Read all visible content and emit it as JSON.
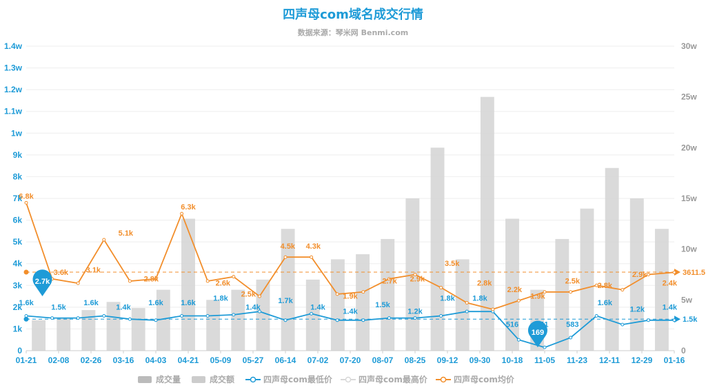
{
  "chart_data": {
    "type": "line",
    "title": "四声母com域名成交行情",
    "subtitle": "数据来源：琴米网 Benmi.com",
    "x_ticks": [
      "01-21",
      "02-08",
      "02-26",
      "03-16",
      "04-03",
      "04-21",
      "05-09",
      "05-27",
      "06-14",
      "07-02",
      "07-20",
      "08-07",
      "08-25",
      "09-12",
      "09-30",
      "10-18",
      "11-05",
      "11-23",
      "12-11",
      "12-29",
      "01-16"
    ],
    "y_left_ticks": [
      "0",
      "1k",
      "2k",
      "3k",
      "4k",
      "5k",
      "6k",
      "7k",
      "8k",
      "9k",
      "1w",
      "1.1w",
      "1.2w",
      "1.3w",
      "1.4w"
    ],
    "y_right_ticks": [
      "0",
      "5w",
      "10w",
      "15w",
      "20w",
      "25w",
      "30w"
    ],
    "ylim_left": [
      0,
      14000
    ],
    "ylim_right": [
      0,
      300000
    ],
    "grid": true,
    "legend_position": "bottom",
    "legend": [
      {
        "name": "成交量",
        "color": "#bbbbbb",
        "icon": "rect"
      },
      {
        "name": "成交额",
        "color": "#cccccc",
        "icon": "rect"
      },
      {
        "name": "四声母com最低价",
        "color": "#1e9bd7",
        "icon": "line-circle"
      },
      {
        "name": "四声母com最高价",
        "color": "#d8d8d8",
        "icon": "line-circle"
      },
      {
        "name": "四声母com均价",
        "color": "#f28e2b",
        "icon": "line-circle"
      }
    ],
    "series": [
      {
        "name": "四声母com最低价",
        "color": "#1e9bd7",
        "axis": "left",
        "values": [
          1600,
          1500,
          1500,
          1600,
          1450,
          1400,
          1600,
          1600,
          1650,
          1800,
          1400,
          1700,
          1400,
          1400,
          1500,
          1500,
          1600,
          1800,
          1800,
          500,
          150,
          600,
          1600,
          1200,
          1400,
          1400
        ]
      },
      {
        "name": "四声母com均价",
        "color": "#f28e2b",
        "axis": "left",
        "values": [
          6800,
          3300,
          3100,
          5100,
          3200,
          3300,
          6300,
          3200,
          3400,
          2500,
          4300,
          4300,
          2600,
          2700,
          3300,
          3500,
          2900,
          2200,
          1900,
          2300,
          2700,
          2700,
          3000,
          2800,
          3500,
          3600
        ]
      }
    ],
    "bars": {
      "name": "成交额",
      "color": "#d4d4d4",
      "axis": "right",
      "values": [
        30000,
        32000,
        40000,
        48000,
        42000,
        60000,
        130000,
        50000,
        60000,
        70000,
        120000,
        70000,
        90000,
        95000,
        110000,
        150000,
        200000,
        90000,
        250000,
        130000,
        60000,
        110000,
        140000,
        180000,
        150000,
        120000
      ]
    },
    "annotations_orange": [
      {
        "text": "6.8k",
        "x": 0,
        "y": 6800
      },
      {
        "text": "3.6k",
        "x": 1.5,
        "y": 3300
      },
      {
        "text": "3.1k",
        "x": 2.9,
        "y": 3400
      },
      {
        "text": "5.1k",
        "x": 4.3,
        "y": 5100
      },
      {
        "text": "2.8k",
        "x": 5.4,
        "y": 3000
      },
      {
        "text": "6.3k",
        "x": 7.0,
        "y": 6300
      },
      {
        "text": "2.6k",
        "x": 8.5,
        "y": 2800
      },
      {
        "text": "2.5k",
        "x": 9.6,
        "y": 2300
      },
      {
        "text": "4.5k",
        "x": 11.3,
        "y": 4500
      },
      {
        "text": "4.3k",
        "x": 12.4,
        "y": 4500
      },
      {
        "text": "1.9k",
        "x": 14.0,
        "y": 2200
      },
      {
        "text": "2.7k",
        "x": 15.7,
        "y": 2900
      },
      {
        "text": "2.9k",
        "x": 16.9,
        "y": 3000
      },
      {
        "text": "3.5k",
        "x": 18.4,
        "y": 3700
      },
      {
        "text": "2.8k",
        "x": 19.8,
        "y": 2800
      },
      {
        "text": "2.2k",
        "x": 21.1,
        "y": 2500
      },
      {
        "text": "1.9k",
        "x": 22.1,
        "y": 2200
      },
      {
        "text": "2.5k",
        "x": 23.6,
        "y": 2900
      },
      {
        "text": "2.8k",
        "x": 25.0,
        "y": 2700
      },
      {
        "text": "2.9k",
        "x": 26.5,
        "y": 3200
      },
      {
        "text": "2.4k",
        "x": 27.8,
        "y": 2800
      }
    ],
    "annotations_blue": [
      {
        "text": "1.6k",
        "x": 0,
        "y": 1900
      },
      {
        "text": "1.5k",
        "x": 1.4,
        "y": 1700
      },
      {
        "text": "1.6k",
        "x": 2.8,
        "y": 1900
      },
      {
        "text": "1.4k",
        "x": 4.2,
        "y": 1700
      },
      {
        "text": "1.6k",
        "x": 5.6,
        "y": 1900
      },
      {
        "text": "1.6k",
        "x": 7.0,
        "y": 1900
      },
      {
        "text": "1.8k",
        "x": 8.4,
        "y": 2100
      },
      {
        "text": "1.4k",
        "x": 9.8,
        "y": 1700
      },
      {
        "text": "1.7k",
        "x": 11.2,
        "y": 2000
      },
      {
        "text": "1.4k",
        "x": 12.6,
        "y": 1700
      },
      {
        "text": "1.4k",
        "x": 14.0,
        "y": 1500
      },
      {
        "text": "1.5k",
        "x": 15.4,
        "y": 1800
      },
      {
        "text": "1.2k",
        "x": 16.8,
        "y": 1500
      },
      {
        "text": "1.8k",
        "x": 18.2,
        "y": 2100
      },
      {
        "text": "1.8k",
        "x": 19.6,
        "y": 2100
      },
      {
        "text": "516",
        "x": 21.0,
        "y": 900
      },
      {
        "text": "511",
        "x": 22.3,
        "y": 900
      },
      {
        "text": "583",
        "x": 23.6,
        "y": 900
      },
      {
        "text": "1.6k",
        "x": 25.0,
        "y": 1900
      },
      {
        "text": "1.2k",
        "x": 26.4,
        "y": 1600
      },
      {
        "text": "1.4k",
        "x": 27.8,
        "y": 1700
      }
    ],
    "markers": [
      {
        "text": "2.7k",
        "x": 0.7,
        "y": 3200,
        "color": "#1e9bd7"
      },
      {
        "text": "169",
        "x": 22.1,
        "y": 850,
        "color": "#1e9bd7"
      }
    ],
    "reference_lines": [
      {
        "label": "3611.5",
        "value": 3611.5,
        "color": "#f28e2b"
      },
      {
        "label": "1.5k",
        "value": 1450,
        "color": "#1e9bd7"
      }
    ]
  }
}
